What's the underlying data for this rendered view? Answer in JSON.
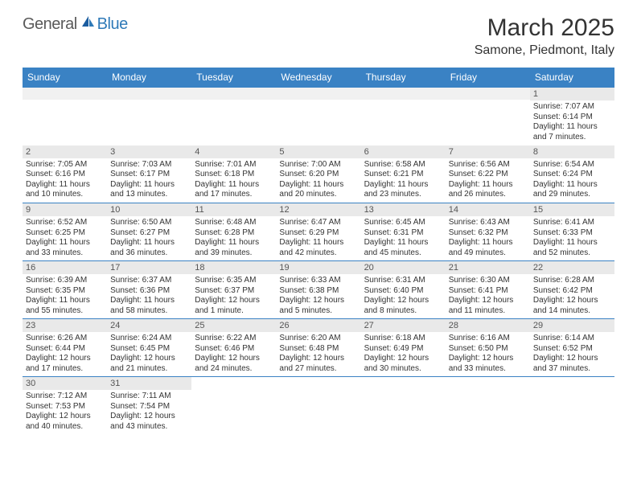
{
  "logo": {
    "part1": "General",
    "part2": "Blue"
  },
  "title": "March 2025",
  "location": "Samone, Piedmont, Italy",
  "colors": {
    "header_bg": "#3a82c4",
    "header_text": "#ffffff",
    "daynum_bg": "#e9e9e9",
    "daynum_text": "#555555",
    "cell_border": "#3a82c4",
    "logo_gray": "#5a5a5a",
    "logo_blue": "#2f7ab8",
    "body_text": "#333333"
  },
  "typography": {
    "title_fontsize": 30,
    "location_fontsize": 16,
    "dayheader_fontsize": 12,
    "daynum_fontsize": 11,
    "body_fontsize": 10
  },
  "day_headers": [
    "Sunday",
    "Monday",
    "Tuesday",
    "Wednesday",
    "Thursday",
    "Friday",
    "Saturday"
  ],
  "weeks": [
    [
      null,
      null,
      null,
      null,
      null,
      null,
      {
        "n": "1",
        "sunrise": "7:07 AM",
        "sunset": "6:14 PM",
        "daylight": "11 hours and 7 minutes."
      }
    ],
    [
      {
        "n": "2",
        "sunrise": "7:05 AM",
        "sunset": "6:16 PM",
        "daylight": "11 hours and 10 minutes."
      },
      {
        "n": "3",
        "sunrise": "7:03 AM",
        "sunset": "6:17 PM",
        "daylight": "11 hours and 13 minutes."
      },
      {
        "n": "4",
        "sunrise": "7:01 AM",
        "sunset": "6:18 PM",
        "daylight": "11 hours and 17 minutes."
      },
      {
        "n": "5",
        "sunrise": "7:00 AM",
        "sunset": "6:20 PM",
        "daylight": "11 hours and 20 minutes."
      },
      {
        "n": "6",
        "sunrise": "6:58 AM",
        "sunset": "6:21 PM",
        "daylight": "11 hours and 23 minutes."
      },
      {
        "n": "7",
        "sunrise": "6:56 AM",
        "sunset": "6:22 PM",
        "daylight": "11 hours and 26 minutes."
      },
      {
        "n": "8",
        "sunrise": "6:54 AM",
        "sunset": "6:24 PM",
        "daylight": "11 hours and 29 minutes."
      }
    ],
    [
      {
        "n": "9",
        "sunrise": "6:52 AM",
        "sunset": "6:25 PM",
        "daylight": "11 hours and 33 minutes."
      },
      {
        "n": "10",
        "sunrise": "6:50 AM",
        "sunset": "6:27 PM",
        "daylight": "11 hours and 36 minutes."
      },
      {
        "n": "11",
        "sunrise": "6:48 AM",
        "sunset": "6:28 PM",
        "daylight": "11 hours and 39 minutes."
      },
      {
        "n": "12",
        "sunrise": "6:47 AM",
        "sunset": "6:29 PM",
        "daylight": "11 hours and 42 minutes."
      },
      {
        "n": "13",
        "sunrise": "6:45 AM",
        "sunset": "6:31 PM",
        "daylight": "11 hours and 45 minutes."
      },
      {
        "n": "14",
        "sunrise": "6:43 AM",
        "sunset": "6:32 PM",
        "daylight": "11 hours and 49 minutes."
      },
      {
        "n": "15",
        "sunrise": "6:41 AM",
        "sunset": "6:33 PM",
        "daylight": "11 hours and 52 minutes."
      }
    ],
    [
      {
        "n": "16",
        "sunrise": "6:39 AM",
        "sunset": "6:35 PM",
        "daylight": "11 hours and 55 minutes."
      },
      {
        "n": "17",
        "sunrise": "6:37 AM",
        "sunset": "6:36 PM",
        "daylight": "11 hours and 58 minutes."
      },
      {
        "n": "18",
        "sunrise": "6:35 AM",
        "sunset": "6:37 PM",
        "daylight": "12 hours and 1 minute."
      },
      {
        "n": "19",
        "sunrise": "6:33 AM",
        "sunset": "6:38 PM",
        "daylight": "12 hours and 5 minutes."
      },
      {
        "n": "20",
        "sunrise": "6:31 AM",
        "sunset": "6:40 PM",
        "daylight": "12 hours and 8 minutes."
      },
      {
        "n": "21",
        "sunrise": "6:30 AM",
        "sunset": "6:41 PM",
        "daylight": "12 hours and 11 minutes."
      },
      {
        "n": "22",
        "sunrise": "6:28 AM",
        "sunset": "6:42 PM",
        "daylight": "12 hours and 14 minutes."
      }
    ],
    [
      {
        "n": "23",
        "sunrise": "6:26 AM",
        "sunset": "6:44 PM",
        "daylight": "12 hours and 17 minutes."
      },
      {
        "n": "24",
        "sunrise": "6:24 AM",
        "sunset": "6:45 PM",
        "daylight": "12 hours and 21 minutes."
      },
      {
        "n": "25",
        "sunrise": "6:22 AM",
        "sunset": "6:46 PM",
        "daylight": "12 hours and 24 minutes."
      },
      {
        "n": "26",
        "sunrise": "6:20 AM",
        "sunset": "6:48 PM",
        "daylight": "12 hours and 27 minutes."
      },
      {
        "n": "27",
        "sunrise": "6:18 AM",
        "sunset": "6:49 PM",
        "daylight": "12 hours and 30 minutes."
      },
      {
        "n": "28",
        "sunrise": "6:16 AM",
        "sunset": "6:50 PM",
        "daylight": "12 hours and 33 minutes."
      },
      {
        "n": "29",
        "sunrise": "6:14 AM",
        "sunset": "6:52 PM",
        "daylight": "12 hours and 37 minutes."
      }
    ],
    [
      {
        "n": "30",
        "sunrise": "7:12 AM",
        "sunset": "7:53 PM",
        "daylight": "12 hours and 40 minutes."
      },
      {
        "n": "31",
        "sunrise": "7:11 AM",
        "sunset": "7:54 PM",
        "daylight": "12 hours and 43 minutes."
      },
      null,
      null,
      null,
      null,
      null
    ]
  ],
  "labels": {
    "sunrise": "Sunrise:",
    "sunset": "Sunset:",
    "daylight": "Daylight:"
  }
}
